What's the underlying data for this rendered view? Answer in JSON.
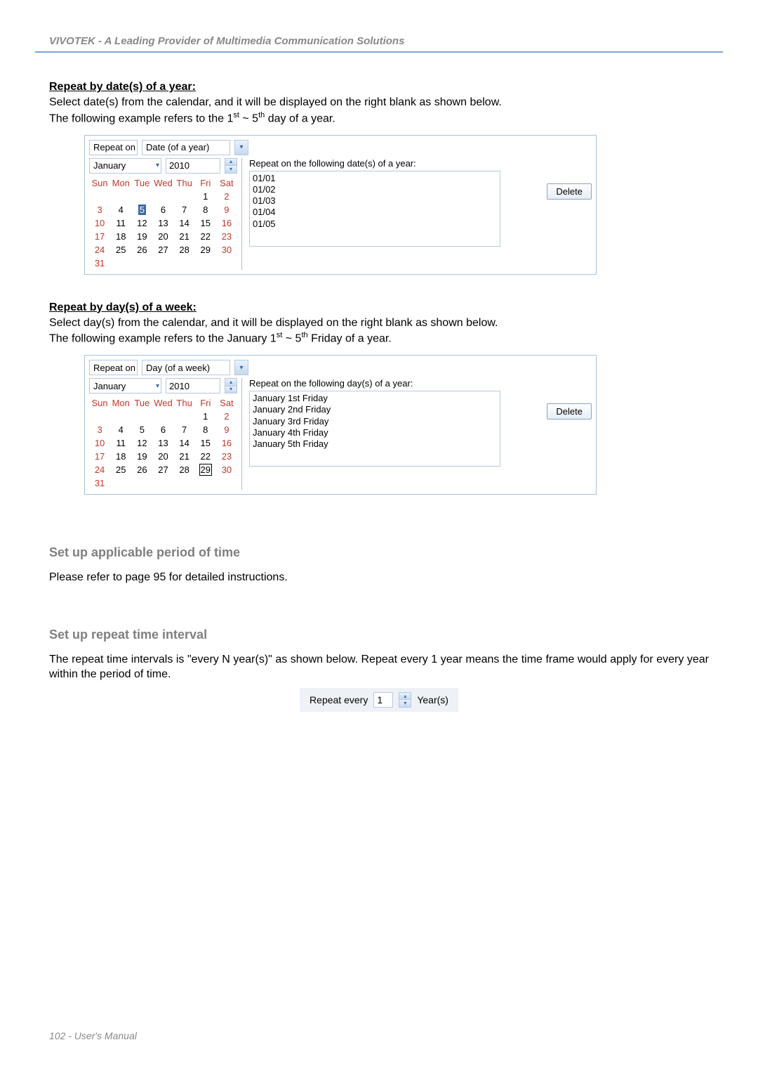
{
  "page": {
    "header": "VIVOTEK - A Leading Provider of Multimedia Communication Solutions",
    "footer": "102 - User's Manual"
  },
  "sec1": {
    "title": "Repeat by date(s) of a year:",
    "line1": "Select date(s) from the calendar, and it will be displayed on the right blank as shown below.",
    "line2a": "The following example refers to the 1",
    "line2sup1": "st",
    "line2mid": " ~ 5",
    "line2sup2": "th",
    "line2end": " day of a year."
  },
  "ui1": {
    "repeat_on": "Repeat on",
    "mode": "Date (of a year)",
    "month": "January",
    "year": "2010",
    "list_label": "Repeat on the following date(s) of a year:",
    "delete": "Delete",
    "dates": [
      "01/01",
      "01/02",
      "01/03",
      "01/04",
      "01/05"
    ],
    "selected_day": 5
  },
  "cal": {
    "dow": [
      "Sun",
      "Mon",
      "Tue",
      "Wed",
      "Thu",
      "Fri",
      "Sat"
    ],
    "weeks": [
      [
        "",
        "",
        "",
        "",
        "",
        "1",
        "2"
      ],
      [
        "3",
        "4",
        "5",
        "6",
        "7",
        "8",
        "9"
      ],
      [
        "10",
        "11",
        "12",
        "13",
        "14",
        "15",
        "16"
      ],
      [
        "17",
        "18",
        "19",
        "20",
        "21",
        "22",
        "23"
      ],
      [
        "24",
        "25",
        "26",
        "27",
        "28",
        "29",
        "30"
      ],
      [
        "31",
        "",
        "",
        "",
        "",
        "",
        ""
      ]
    ]
  },
  "sec2": {
    "title": "Repeat by day(s) of a week:",
    "line1": "Select day(s) from the calendar, and it will be displayed on the right blank as shown below.",
    "line2a": "The following example refers to the January 1",
    "line2sup1": "st",
    "line2mid": " ~ 5",
    "line2sup2": "th",
    "line2end": " Friday of a year."
  },
  "ui2": {
    "repeat_on": "Repeat on",
    "mode": "Day (of a week)",
    "month": "January",
    "year": "2010",
    "list_label": "Repeat on the following day(s) of a year:",
    "delete": "Delete",
    "days": [
      "January 1st Friday",
      "January 2nd Friday",
      "January 3rd Friday",
      "January 4th Friday",
      "January 5th Friday"
    ],
    "box_day": 29
  },
  "sec3": {
    "title": "Set up applicable period of time",
    "body": "Please refer to page 95 for detailed instructions."
  },
  "sec4": {
    "title": "Set up repeat time interval",
    "body": "The repeat time intervals is \"every N year(s)\" as shown below. Repeat every 1 year means the time frame would apply for every year within the period of time.",
    "repeat_every": "Repeat every",
    "value": "1",
    "unit": "Year(s)"
  }
}
